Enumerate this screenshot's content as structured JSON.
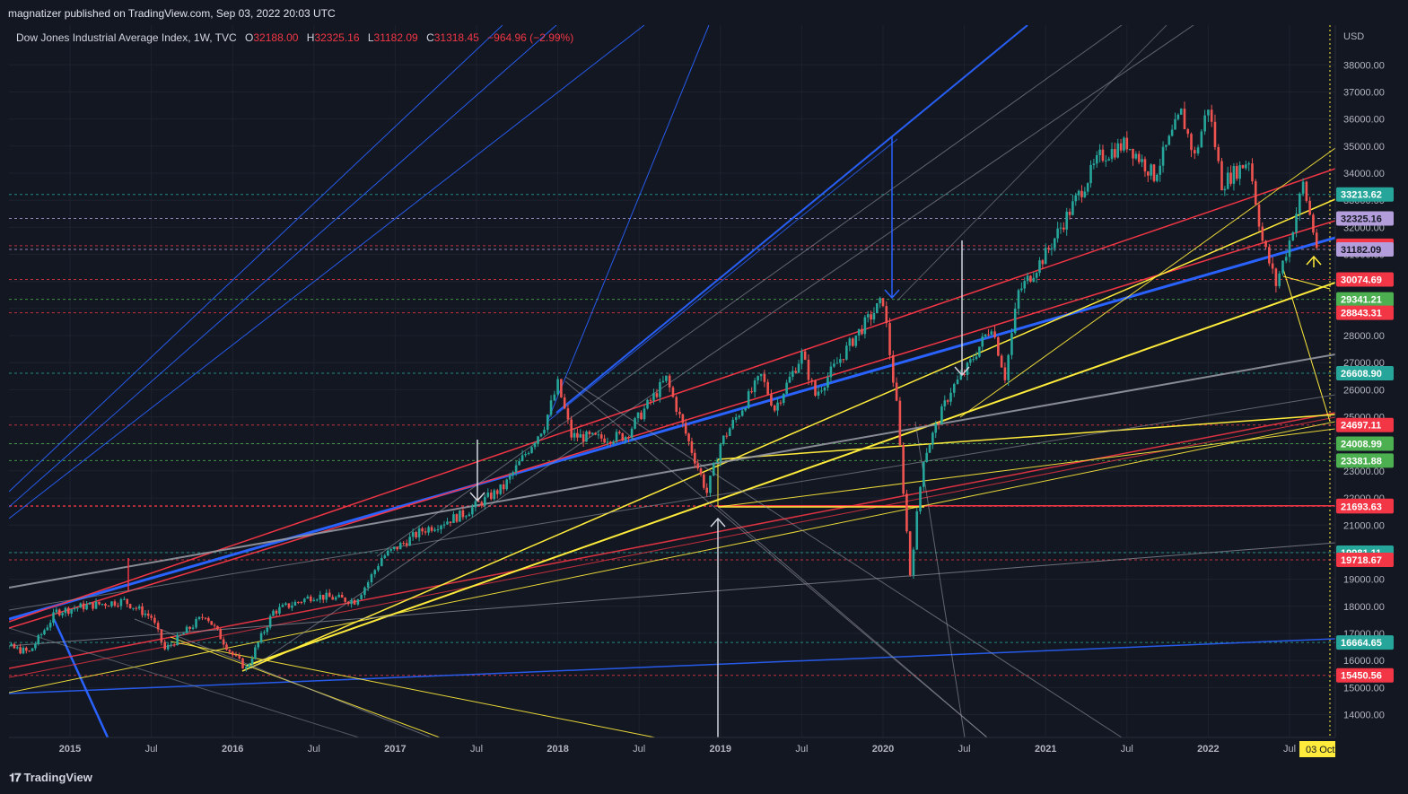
{
  "header": {
    "published": "magnatizer published on TradingView.com, Sep 03, 2022 20:03 UTC"
  },
  "legend": {
    "title": "Dow Jones Industrial Average Index, 1W, TVC",
    "open_label": "O",
    "open": "32188.00",
    "high_label": "H",
    "high": "32325.16",
    "low_label": "L",
    "low": "31182.09",
    "close_label": "C",
    "close": "31318.45",
    "change": "−964.96 (−2.99%)"
  },
  "footer": {
    "brand": "TradingView"
  },
  "chart_data": {
    "type": "candlestick",
    "symbol": "Dow Jones Industrial Average Index",
    "interval": "1W",
    "currency": "USD",
    "ylim": [
      13200,
      40000
    ],
    "y_ticks": [
      "14000.00",
      "15000.00",
      "16000.00",
      "17000.00",
      "18000.00",
      "19000.00",
      "20000.00",
      "21000.00",
      "22000.00",
      "23000.00",
      "24000.00",
      "25000.00",
      "26000.00",
      "27000.00",
      "28000.00",
      "29000.00",
      "30000.00",
      "31000.00",
      "32000.00",
      "33000.00",
      "34000.00",
      "35000.00",
      "36000.00",
      "37000.00",
      "38000.00"
    ],
    "x_ticks": [
      "2015",
      "Jul",
      "2016",
      "Jul",
      "2017",
      "Jul",
      "2018",
      "Jul",
      "2019",
      "Jul",
      "2020",
      "Jul",
      "2021",
      "Jul",
      "2022",
      "Jul"
    ],
    "x_range": [
      "2014-06",
      "2022-10"
    ],
    "current_date_label": "03 Oct",
    "price_labels": [
      {
        "text": "33213.62",
        "value": 33213.62,
        "color": "#26a69a",
        "text_color": "#ffffff"
      },
      {
        "text": "32325.16",
        "value": 32325.16,
        "color": "#b39ddb",
        "text_color": "#131722"
      },
      {
        "text": "31318.45",
        "value": 31318.45,
        "color": "#f23645",
        "text_color": "#ffffff"
      },
      {
        "text": "31182.09",
        "value": 31182.09,
        "color": "#b39ddb",
        "text_color": "#131722"
      },
      {
        "text": "30074.69",
        "value": 30074.69,
        "color": "#f23645",
        "text_color": "#ffffff"
      },
      {
        "text": "29341.21",
        "value": 29341.21,
        "color": "#4caf50",
        "text_color": "#ffffff"
      },
      {
        "text": "28843.31",
        "value": 28843.31,
        "color": "#f23645",
        "text_color": "#ffffff"
      },
      {
        "text": "26608.90",
        "value": 26608.9,
        "color": "#26a69a",
        "text_color": "#ffffff"
      },
      {
        "text": "24697.11",
        "value": 24697.11,
        "color": "#f23645",
        "text_color": "#ffffff"
      },
      {
        "text": "24008.99",
        "value": 24008.99,
        "color": "#4caf50",
        "text_color": "#ffffff"
      },
      {
        "text": "23381.88",
        "value": 23381.88,
        "color": "#4caf50",
        "text_color": "#ffffff"
      },
      {
        "text": "21712.53",
        "value": 21712.53,
        "color": "#f23645",
        "text_color": "#ffffff"
      },
      {
        "text": "21693.63",
        "value": 21693.63,
        "color": "#f23645",
        "text_color": "#ffffff"
      },
      {
        "text": "19981.11",
        "value": 19981.11,
        "color": "#26a69a",
        "text_color": "#ffffff"
      },
      {
        "text": "19718.67",
        "value": 19718.67,
        "color": "#f23645",
        "text_color": "#ffffff"
      },
      {
        "text": "16664.65",
        "value": 16664.65,
        "color": "#26a69a",
        "text_color": "#ffffff"
      },
      {
        "text": "15450.56",
        "value": 15450.56,
        "color": "#f23645",
        "text_color": "#ffffff"
      }
    ],
    "price_path": [
      [
        "2014-06",
        16800
      ],
      [
        "2014-08",
        16550
      ],
      [
        "2014-10",
        16300
      ],
      [
        "2014-12",
        17800
      ],
      [
        "2015-02",
        18000
      ],
      [
        "2015-05",
        18200
      ],
      [
        "2015-07",
        17600
      ],
      [
        "2015-08",
        16400
      ],
      [
        "2015-11",
        17700
      ],
      [
        "2016-01",
        16200
      ],
      [
        "2016-02",
        15700
      ],
      [
        "2016-04",
        17800
      ],
      [
        "2016-07",
        18400
      ],
      [
        "2016-10",
        18200
      ],
      [
        "2016-11",
        18900
      ],
      [
        "2016-12",
        19800
      ],
      [
        "2017-03",
        20800
      ],
      [
        "2017-06",
        21400
      ],
      [
        "2017-09",
        22400
      ],
      [
        "2017-12",
        24700
      ],
      [
        "2018-01",
        26200
      ],
      [
        "2018-02",
        24300
      ],
      [
        "2018-04",
        24200
      ],
      [
        "2018-06",
        24300
      ],
      [
        "2018-09",
        26400
      ],
      [
        "2018-10",
        25000
      ],
      [
        "2018-12",
        22200
      ],
      [
        "2019-01",
        24000
      ],
      [
        "2019-04",
        26500
      ],
      [
        "2019-05",
        25300
      ],
      [
        "2019-07",
        27300
      ],
      [
        "2019-08",
        25800
      ],
      [
        "2019-11",
        28000
      ],
      [
        "2020-01",
        29300
      ],
      [
        "2020-02",
        25400
      ],
      [
        "2020-03",
        19200
      ],
      [
        "2020-04",
        23500
      ],
      [
        "2020-06",
        26000
      ],
      [
        "2020-07",
        26600
      ],
      [
        "2020-09",
        28400
      ],
      [
        "2020-10",
        26500
      ],
      [
        "2020-11",
        29600
      ],
      [
        "2021-01",
        31000
      ],
      [
        "2021-03",
        32800
      ],
      [
        "2021-05",
        34600
      ],
      [
        "2021-07",
        35100
      ],
      [
        "2021-09",
        33900
      ],
      [
        "2021-11",
        36200
      ],
      [
        "2021-12",
        34600
      ],
      [
        "2022-01",
        36500
      ],
      [
        "2022-02",
        33600
      ],
      [
        "2022-04",
        34500
      ],
      [
        "2022-05",
        31500
      ],
      [
        "2022-06",
        29900
      ],
      [
        "2022-07",
        31500
      ],
      [
        "2022-08",
        33600
      ],
      [
        "2022-09",
        31300
      ]
    ],
    "annotations": [
      {
        "type": "arrow",
        "label": "down-arrow-2017",
        "color": "#d1d4dc"
      },
      {
        "type": "arrow",
        "label": "up-arrow-2018-12",
        "color": "#d1d4dc"
      },
      {
        "type": "arrow",
        "label": "down-arrow-2020-01",
        "color": "#2962ff"
      },
      {
        "type": "arrow",
        "label": "down-arrow-2020-07",
        "color": "#d1d4dc"
      },
      {
        "type": "arrow",
        "label": "up-arrow-2022-09",
        "color": "#ffeb3b"
      }
    ],
    "colors": {
      "background": "#131722",
      "up": "#26a69a",
      "down": "#ef5350",
      "red": "#f23645",
      "yellow": "#ffeb3b",
      "blue": "#2962ff",
      "grey": "#9598a1"
    }
  }
}
